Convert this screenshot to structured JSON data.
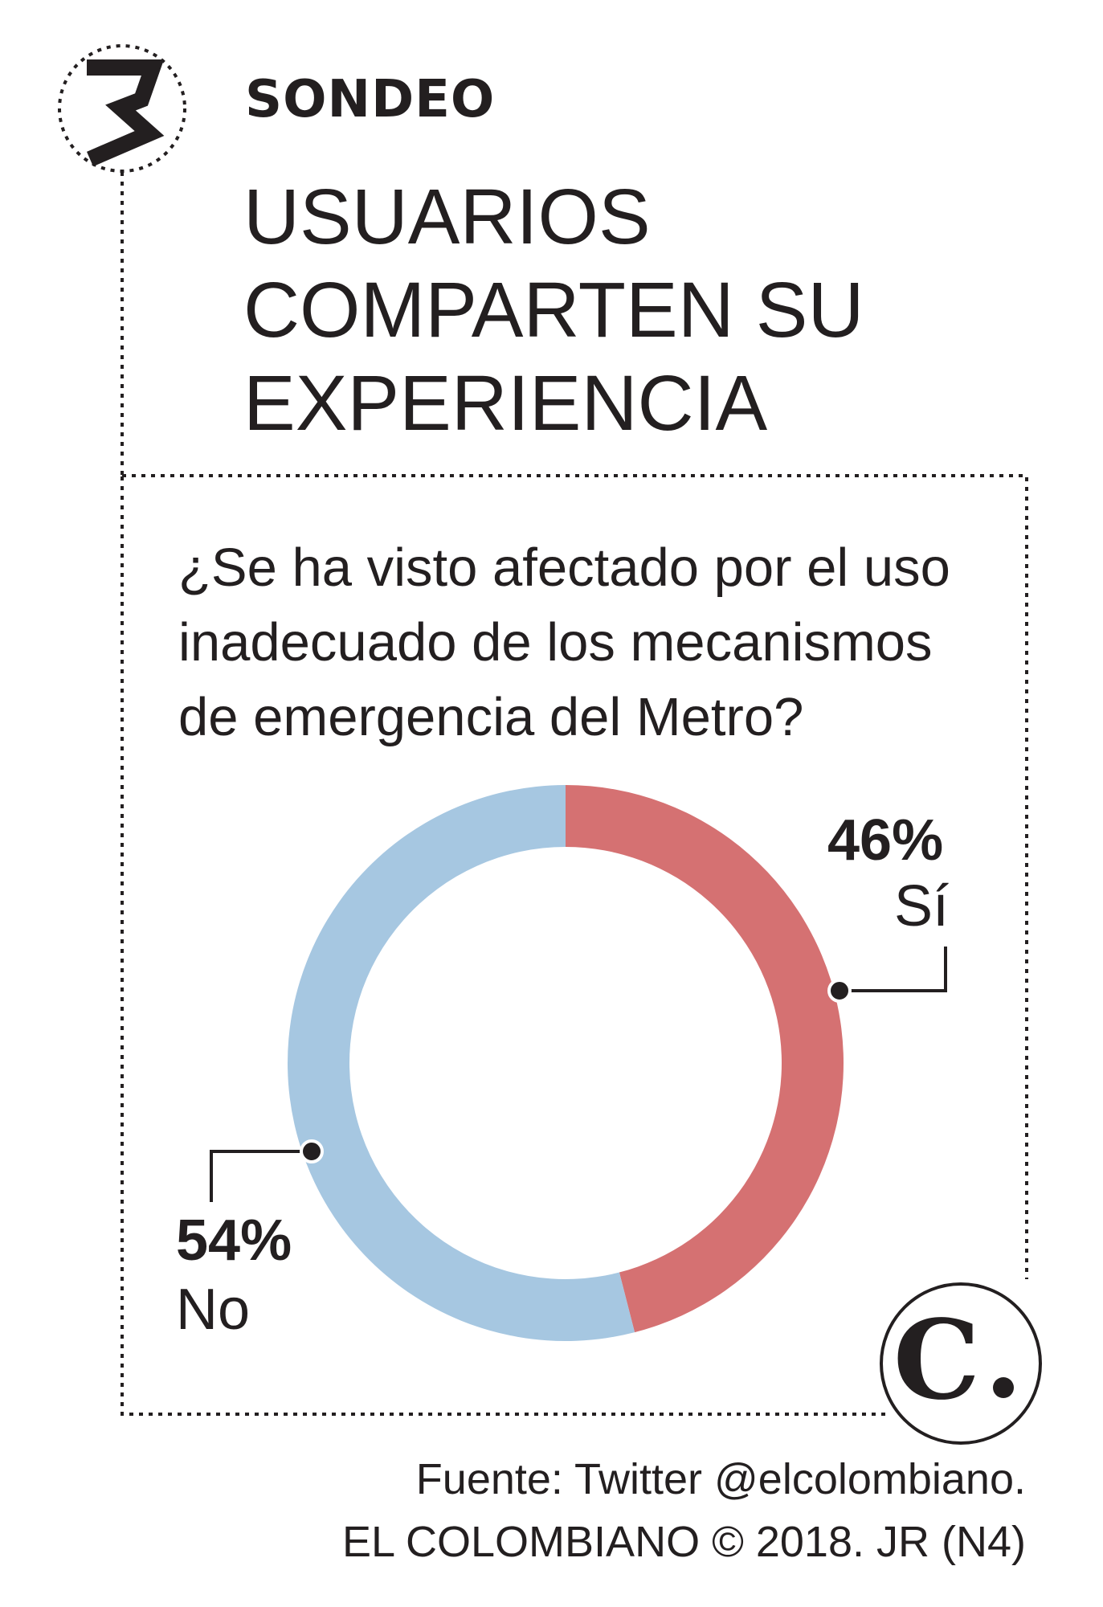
{
  "header": {
    "section_number": "3",
    "kicker": "SONDEO",
    "headline_lines": [
      "USUARIOS",
      "COMPARTEN SU",
      "EXPERIENCIA"
    ]
  },
  "question_lines": [
    "¿Se ha visto afectado por el uso",
    "inadecuado de los mecanismos",
    "de emergencia del Metro?"
  ],
  "chart_data": {
    "type": "pie",
    "categories": [
      "Sí",
      "No"
    ],
    "values": [
      46,
      54
    ],
    "labels": [
      "46%",
      "54%"
    ],
    "unit": "%",
    "colors": [
      "#d57172",
      "#a6c7e1"
    ]
  },
  "footer": {
    "source_lines": [
      "Fuente: Twitter @elcolombiano.",
      "EL COLOMBIANO © 2018. JR (N4)"
    ],
    "logo_letter": "C"
  }
}
